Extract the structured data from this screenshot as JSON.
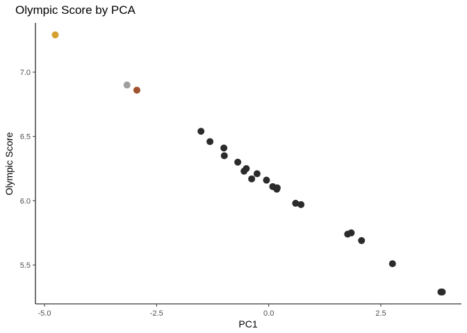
{
  "chart_data": {
    "type": "scatter",
    "title": "Olympic Score by PCA",
    "xlabel": "PC1",
    "ylabel": "Olympic Score",
    "xlim": [
      -5.0,
      4.0
    ],
    "ylim": [
      5.2,
      7.4
    ],
    "x_ticks": [
      {
        "value": -5.0,
        "label": "-5.0"
      },
      {
        "value": -2.5,
        "label": "-2.5"
      },
      {
        "value": 0.0,
        "label": "0.0"
      },
      {
        "value": 2.5,
        "label": "2.5"
      }
    ],
    "y_ticks": [
      {
        "value": 5.5,
        "label": "5.5"
      },
      {
        "value": 6.0,
        "label": "6.0"
      },
      {
        "value": 6.5,
        "label": "6.5"
      },
      {
        "value": 7.0,
        "label": "7.0"
      }
    ],
    "grid": false,
    "legend": "none",
    "colors": {
      "gold": "#D4A030",
      "silver": "#9E9E9E",
      "bronze": "#A0522D",
      "other": "#2B2B2B"
    },
    "points": [
      {
        "x": -4.76,
        "y": 7.29,
        "color": "gold"
      },
      {
        "x": -3.16,
        "y": 6.9,
        "color": "silver"
      },
      {
        "x": -2.94,
        "y": 6.86,
        "color": "bronze"
      },
      {
        "x": -1.51,
        "y": 6.54,
        "color": "other"
      },
      {
        "x": -1.31,
        "y": 6.46,
        "color": "other"
      },
      {
        "x": -1.0,
        "y": 6.41,
        "color": "other"
      },
      {
        "x": -0.99,
        "y": 6.35,
        "color": "other"
      },
      {
        "x": -0.69,
        "y": 6.3,
        "color": "other"
      },
      {
        "x": -0.5,
        "y": 6.25,
        "color": "other"
      },
      {
        "x": -0.55,
        "y": 6.23,
        "color": "other"
      },
      {
        "x": -0.26,
        "y": 6.21,
        "color": "other"
      },
      {
        "x": -0.38,
        "y": 6.17,
        "color": "other"
      },
      {
        "x": -0.05,
        "y": 6.16,
        "color": "other"
      },
      {
        "x": 0.09,
        "y": 6.11,
        "color": "other"
      },
      {
        "x": 0.19,
        "y": 6.1,
        "color": "other"
      },
      {
        "x": 0.18,
        "y": 6.09,
        "color": "other"
      },
      {
        "x": 0.6,
        "y": 5.98,
        "color": "other"
      },
      {
        "x": 0.72,
        "y": 5.97,
        "color": "other"
      },
      {
        "x": 1.76,
        "y": 5.74,
        "color": "other"
      },
      {
        "x": 1.84,
        "y": 5.75,
        "color": "other"
      },
      {
        "x": 2.07,
        "y": 5.69,
        "color": "other"
      },
      {
        "x": 2.76,
        "y": 5.51,
        "color": "other"
      },
      {
        "x": 3.84,
        "y": 5.29,
        "color": "other"
      },
      {
        "x": 3.87,
        "y": 5.29,
        "color": "other"
      }
    ]
  }
}
